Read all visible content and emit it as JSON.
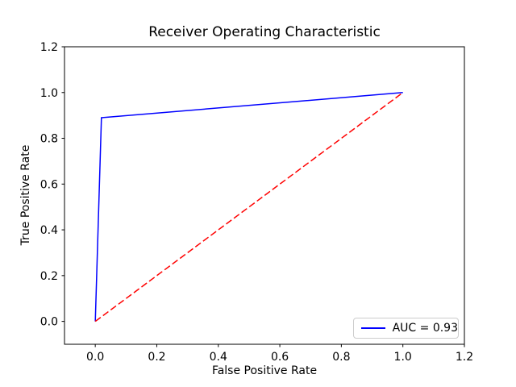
{
  "chart_data": {
    "type": "line",
    "title": "Receiver Operating Characteristic",
    "xlabel": "False Positive Rate",
    "ylabel": "True Positive Rate",
    "xlim": [
      -0.1,
      1.2
    ],
    "ylim": [
      -0.1,
      1.2
    ],
    "xtick_labels": [
      "0.0",
      "0.2",
      "0.4",
      "0.6",
      "0.8",
      "1.0",
      "1.2"
    ],
    "ytick_labels": [
      "0.0",
      "0.2",
      "0.4",
      "0.6",
      "0.8",
      "1.0",
      "1.2"
    ],
    "grid": false,
    "series": [
      {
        "name": "roc-curve",
        "color": "#0000ff",
        "line_style": "solid",
        "line_width": 1.5,
        "points": [
          [
            0.0,
            0.0
          ],
          [
            0.02,
            0.89
          ],
          [
            1.0,
            1.0
          ]
        ]
      },
      {
        "name": "chance-diagonal",
        "color": "#ff0000",
        "line_style": "dashed",
        "line_width": 1.5,
        "points": [
          [
            0.0,
            0.0
          ],
          [
            1.0,
            1.0
          ]
        ]
      }
    ],
    "legend": {
      "position": "lower right",
      "entries": [
        {
          "label": "AUC = 0.93",
          "color": "#0000ff",
          "line_style": "solid"
        }
      ]
    }
  }
}
